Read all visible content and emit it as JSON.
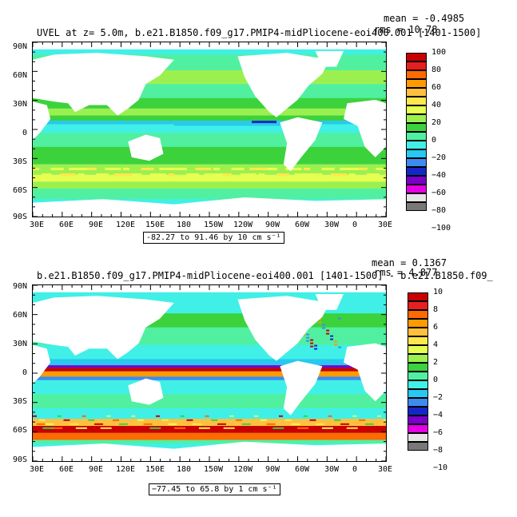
{
  "panels": [
    {
      "title": "UVEL at z=    5.0m, b.e21.B1850.f09_g17.PMIP4-midPliocene-eoi400.001 [1401-1500]",
      "mean": "mean = -0.4985",
      "rms": "rms = 10.78",
      "info": "-82.27 to 91.46 by 10 cm s⁻¹",
      "lat_labels": [
        "90N",
        "60N",
        "30N",
        "0",
        "30S",
        "60S",
        "90S"
      ],
      "lon_labels": [
        "30E",
        "60E",
        "90E",
        "120E",
        "150E",
        "180",
        "150W",
        "120W",
        "90W",
        "60W",
        "30W",
        "0",
        "30E"
      ],
      "colorbar_labels": [
        "100",
        "80",
        "60",
        "40",
        "20",
        "0",
        "−20",
        "−40",
        "−60",
        "−80",
        "−100"
      ]
    },
    {
      "title": "b.e21.B1850.f09_g17.PMIP4-midPliocene-eoi400.001 [1401-1500] - b.e21.B1850.f09_",
      "mean": "mean = 0.1367",
      "rms": "rms = 4.877",
      "info": "−77.45 to 65.8 by 1 cm s⁻¹",
      "lat_labels": [
        "90N",
        "60N",
        "30N",
        "0",
        "30S",
        "60S",
        "90S"
      ],
      "lon_labels": [
        "30E",
        "60E",
        "90E",
        "120E",
        "150E",
        "180",
        "150W",
        "120W",
        "90W",
        "60W",
        "30W",
        "0",
        "30E"
      ],
      "colorbar_labels": [
        "10",
        "8",
        "6",
        "4",
        "2",
        "0",
        "−2",
        "−4",
        "−6",
        "−8",
        "−10"
      ]
    }
  ],
  "colors": {
    "scale": [
      "#c80000",
      "#e62020",
      "#ff6a00",
      "#ff9a00",
      "#ffc040",
      "#ffe84c",
      "#e6ff50",
      "#9bf050",
      "#3cd23c",
      "#50f0a0",
      "#40f0e6",
      "#28c8f0",
      "#3c8cf0",
      "#1428c8",
      "#7800c8",
      "#e600e6",
      "#e6e6e6",
      "#787878"
    ],
    "ocean_base": "#44e8c8",
    "land": "#ffffff"
  }
}
